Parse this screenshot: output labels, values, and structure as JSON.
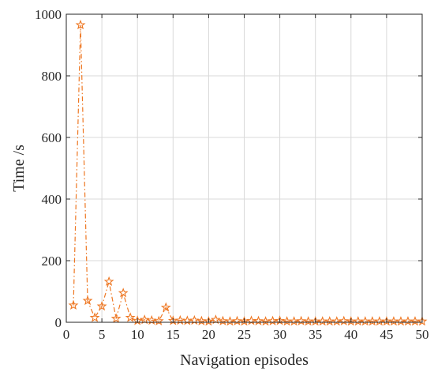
{
  "chart_data": {
    "type": "line",
    "title": "",
    "xlabel": "Navigation episodes",
    "ylabel": "Time /s",
    "xlim": [
      0,
      50
    ],
    "ylim": [
      0,
      1000
    ],
    "xticks": [
      0,
      5,
      10,
      15,
      20,
      25,
      30,
      35,
      40,
      45,
      50
    ],
    "yticks": [
      0,
      200,
      400,
      600,
      800,
      1000
    ],
    "grid": true,
    "legend": "none",
    "marker": "star",
    "line_style": "dash-dot",
    "color": "#EE7722",
    "x": [
      1,
      2,
      3,
      4,
      5,
      6,
      7,
      8,
      9,
      10,
      11,
      12,
      13,
      14,
      15,
      16,
      17,
      18,
      19,
      20,
      21,
      22,
      23,
      24,
      25,
      26,
      27,
      28,
      29,
      30,
      31,
      32,
      33,
      34,
      35,
      36,
      37,
      38,
      39,
      40,
      41,
      42,
      43,
      44,
      45,
      46,
      47,
      48,
      49,
      50
    ],
    "values": [
      55,
      965,
      70,
      15,
      52,
      132,
      12,
      95,
      15,
      5,
      8,
      6,
      4,
      48,
      5,
      6,
      5,
      6,
      4,
      3,
      8,
      4,
      3,
      4,
      3,
      5,
      4,
      3,
      4,
      5,
      3,
      3,
      4,
      3,
      3,
      3,
      3,
      3,
      4,
      3,
      3,
      3,
      3,
      3,
      3,
      3,
      3,
      3,
      3,
      3
    ]
  }
}
